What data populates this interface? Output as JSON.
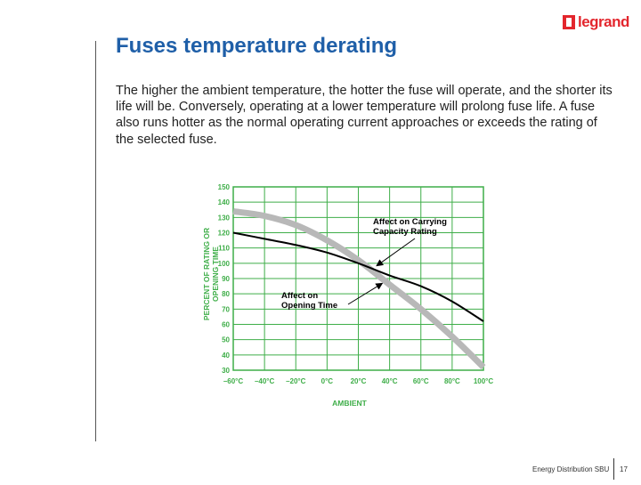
{
  "slide": {
    "title": "Fuses temperature derating",
    "body": "The higher the ambient temperature, the hotter the fuse will operate, and the shorter its life will be. Conversely, operating at a lower temperature will prolong fuse life. A fuse also runs hotter as the normal operating current approaches or exceeds the rating of the selected fuse.",
    "logo_text": "legrand",
    "footer_text": "Energy Distribution SBU",
    "page_number": "17"
  },
  "colors": {
    "accent_title": "#1f5fa8",
    "brand_red": "#e3262d",
    "grid_green": "#3fae49",
    "rating_curve": "#000000",
    "opening_time_curve": "#b8b8b8"
  },
  "chart_data": {
    "type": "line",
    "xlabel": "AMBIENT",
    "ylabel_lines": [
      "PERCENT OF RATING OR",
      "OPENING TIME"
    ],
    "x_ticks": [
      "–60°C",
      "–40°C",
      "–20°C",
      "0°C",
      "20°C",
      "40°C",
      "60°C",
      "80°C",
      "100°C"
    ],
    "x_values": [
      -60,
      -40,
      -20,
      0,
      20,
      40,
      60,
      80,
      100
    ],
    "xlim": [
      -60,
      100
    ],
    "y_ticks": [
      30,
      40,
      50,
      60,
      70,
      80,
      90,
      100,
      110,
      120,
      130,
      140,
      150
    ],
    "ylim": [
      30,
      150
    ],
    "grid": true,
    "series": [
      {
        "name": "Affect on Carrying Capacity Rating",
        "x": [
          -60,
          -40,
          -20,
          0,
          20,
          40,
          60,
          80,
          100
        ],
        "y": [
          120,
          116,
          112,
          107,
          100,
          92,
          85,
          75,
          62
        ]
      },
      {
        "name": "Affect on Opening Time",
        "x": [
          -60,
          -40,
          -20,
          0,
          20,
          40,
          60,
          80,
          100
        ],
        "y": [
          134,
          131,
          125,
          115,
          102,
          86,
          70,
          52,
          32
        ]
      }
    ],
    "annotations": [
      {
        "lines": [
          "Affect on Carrying",
          "Capacity Rating"
        ],
        "series": 0
      },
      {
        "lines": [
          "Affect on",
          "Opening Time"
        ],
        "series": 1
      }
    ]
  }
}
